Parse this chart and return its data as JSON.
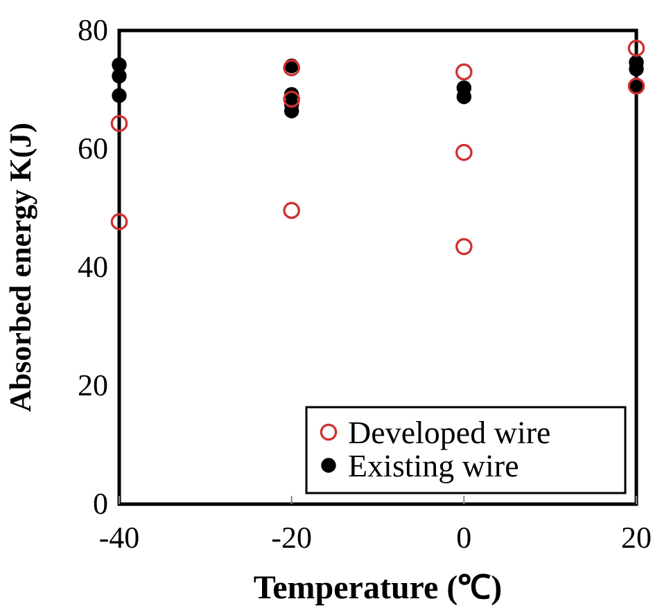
{
  "chart_data": {
    "type": "scatter",
    "xlabel": "Temperature (℃)",
    "ylabel": "Absorbed energy K(J)",
    "xlim": [
      -40,
      20
    ],
    "xticks": [
      -40,
      -20,
      0,
      20
    ],
    "ylim": [
      0,
      80
    ],
    "yticks": [
      0,
      20,
      40,
      60,
      80
    ],
    "legend": "bottom right",
    "grid": false,
    "marker": "circle",
    "series": [
      {
        "name": "Developed wire",
        "color": "#d03030",
        "x": [
          -40,
          -40,
          -20,
          -20,
          -20,
          0,
          0,
          0,
          20,
          20
        ],
        "values": [
          64.3,
          47.7,
          73.7,
          68.4,
          49.6,
          73,
          59.4,
          43.5,
          77,
          70.6
        ]
      },
      {
        "name": "Existing wire",
        "color": "#000000",
        "x": [
          -40,
          -40,
          -40,
          -20,
          -20,
          -20,
          -20,
          0,
          0,
          20,
          20,
          20
        ],
        "values": [
          74.2,
          72.3,
          69,
          74,
          69.2,
          67.5,
          66.4,
          70.3,
          68.8,
          74.6,
          73.5,
          70.6
        ]
      }
    ]
  }
}
